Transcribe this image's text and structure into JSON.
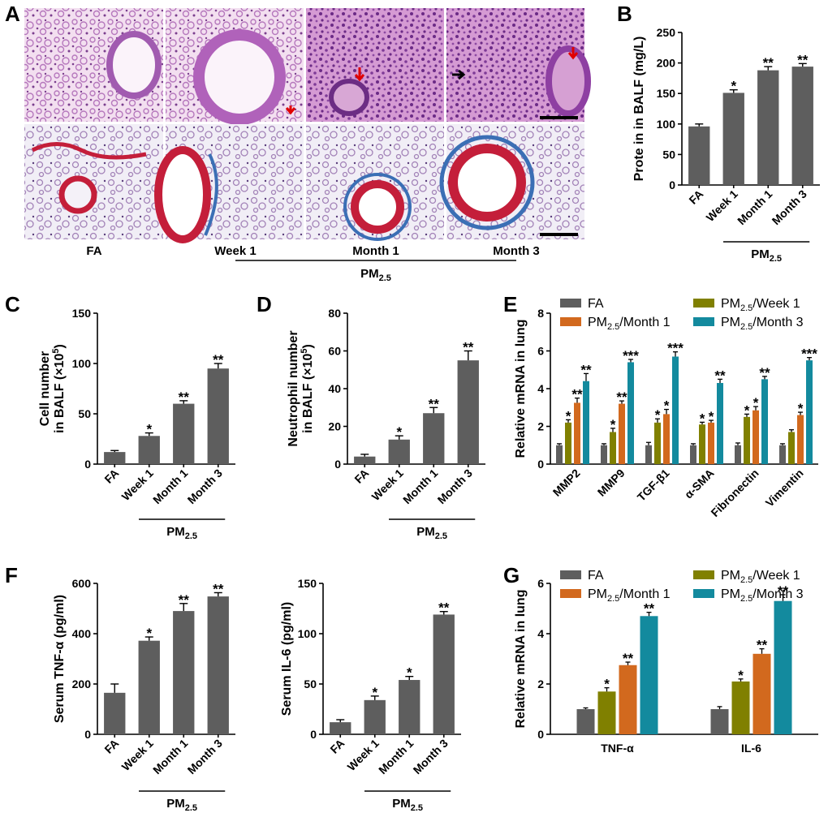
{
  "panel_labels": {
    "a": "A",
    "b": "B",
    "c": "C",
    "d": "D",
    "e": "E",
    "f": "F",
    "g": "G"
  },
  "colors": {
    "FA": "#5e5e5e",
    "week1": "#808000",
    "month1": "#d2691e",
    "month3": "#138a9e",
    "bar": "#5e5e5e"
  },
  "micrographs": {
    "he_row": [
      "FA",
      "Week 1",
      "Month 1",
      "Month 3"
    ],
    "masson_row": [
      "FA",
      "Week 1",
      "Month 1",
      "Month 3"
    ],
    "captions": [
      "FA",
      "Week 1",
      "Month 1",
      "Month 3"
    ],
    "group_label": "PM",
    "group_sub": "2.5"
  },
  "pm_label": "PM",
  "pm_sub": "2.5",
  "chart_data": [
    {
      "id": "B",
      "type": "bar",
      "categories": [
        "FA",
        "Week 1",
        "Month 1",
        "Month 3"
      ],
      "values": [
        96,
        151,
        188,
        194
      ],
      "errors": [
        4,
        5,
        6,
        5
      ],
      "significance": [
        "",
        "*",
        "**",
        "**"
      ],
      "ylabel": "Prote in in BALF (mg/L)",
      "ylim": [
        0,
        250
      ],
      "yticks": [
        0,
        50,
        100,
        150,
        200,
        250
      ]
    },
    {
      "id": "C",
      "type": "bar",
      "categories": [
        "FA",
        "Week 1",
        "Month 1",
        "Month 3"
      ],
      "values": [
        12,
        28,
        60,
        95
      ],
      "errors": [
        1.5,
        3,
        3,
        5
      ],
      "significance": [
        "",
        "*",
        "**",
        "**"
      ],
      "ylabel_line1": "Cell number",
      "ylabel_line2": "in BALF (×10",
      "ylabel_sup": "5",
      "ylabel_end": ")",
      "ylim": [
        0,
        150
      ],
      "yticks": [
        0,
        50,
        100,
        150
      ]
    },
    {
      "id": "D",
      "type": "bar",
      "categories": [
        "FA",
        "Week 1",
        "Month 1",
        "Month 3"
      ],
      "values": [
        4,
        13,
        27,
        55
      ],
      "errors": [
        1.2,
        2,
        3,
        5
      ],
      "significance": [
        "",
        "*",
        "**",
        "**"
      ],
      "ylabel_line1": "Neutrophil number",
      "ylabel_line2": "in BALF (×10",
      "ylabel_sup": "5",
      "ylabel_end": ")",
      "ylim": [
        0,
        80
      ],
      "yticks": [
        0,
        20,
        40,
        60,
        80
      ]
    },
    {
      "id": "E",
      "type": "bar",
      "categories": [
        "MMP2",
        "MMP9",
        "TGF-β1",
        "α-SMA",
        "Fibronectin",
        "Vimentin"
      ],
      "series": [
        {
          "name": "FA",
          "values": [
            1.0,
            1.0,
            1.0,
            1.0,
            1.0,
            1.0
          ],
          "errors": [
            0.08,
            0.08,
            0.15,
            0.08,
            0.12,
            0.08
          ],
          "significance": [
            "",
            "",
            "",
            "",
            "",
            ""
          ]
        },
        {
          "name": "PM2.5/Week 1",
          "values": [
            2.2,
            1.7,
            2.2,
            2.1,
            2.5,
            1.7
          ],
          "errors": [
            0.15,
            0.2,
            0.2,
            0.12,
            0.15,
            0.12
          ],
          "significance": [
            "*",
            "*",
            "*",
            "*",
            "*",
            ""
          ]
        },
        {
          "name": "PM2.5/Month 1",
          "values": [
            3.25,
            3.2,
            2.65,
            2.2,
            2.85,
            2.6
          ],
          "errors": [
            0.25,
            0.15,
            0.25,
            0.12,
            0.2,
            0.15
          ],
          "significance": [
            "**",
            "**",
            "*",
            "*",
            "*",
            "*"
          ]
        },
        {
          "name": "PM2.5/Month 3",
          "values": [
            4.4,
            5.4,
            5.7,
            4.3,
            4.5,
            5.5
          ],
          "errors": [
            0.4,
            0.15,
            0.25,
            0.2,
            0.15,
            0.15
          ],
          "significance": [
            "**",
            "***",
            "***",
            "**",
            "**",
            "***"
          ]
        }
      ],
      "ylabel": "Relative mRNA in lung",
      "ylim": [
        0,
        8
      ],
      "yticks": [
        0,
        2,
        4,
        6,
        8
      ]
    },
    {
      "id": "F1",
      "type": "bar",
      "categories": [
        "FA",
        "Week 1",
        "Month 1",
        "Month 3"
      ],
      "values": [
        165,
        372,
        490,
        548
      ],
      "errors": [
        35,
        15,
        30,
        15
      ],
      "significance": [
        "",
        "*",
        "**",
        "**"
      ],
      "ylabel": "Serum TNF-α (pg/ml)",
      "ylim": [
        0,
        600
      ],
      "yticks": [
        0,
        200,
        400,
        600
      ]
    },
    {
      "id": "F2",
      "type": "bar",
      "categories": [
        "FA",
        "Week 1",
        "Month 1",
        "Month 3"
      ],
      "values": [
        12,
        34,
        54,
        119
      ],
      "errors": [
        2.5,
        4,
        3.5,
        3
      ],
      "significance": [
        "",
        "*",
        "*",
        "**"
      ],
      "ylabel": "Serum IL-6 (pg/ml)",
      "ylim": [
        0,
        150
      ],
      "yticks": [
        0,
        50,
        100,
        150
      ]
    },
    {
      "id": "G",
      "type": "bar",
      "categories": [
        "TNF-α",
        "IL-6"
      ],
      "series": [
        {
          "name": "FA",
          "values": [
            1.0,
            1.0
          ],
          "errors": [
            0.05,
            0.1
          ],
          "significance": [
            "",
            ""
          ]
        },
        {
          "name": "PM2.5/Week 1",
          "values": [
            1.7,
            2.1
          ],
          "errors": [
            0.15,
            0.1
          ],
          "significance": [
            "*",
            "*"
          ]
        },
        {
          "name": "PM2.5/Month 1",
          "values": [
            2.75,
            3.2
          ],
          "errors": [
            0.12,
            0.2
          ],
          "significance": [
            "**",
            "**"
          ]
        },
        {
          "name": "PM2.5/Month 3",
          "values": [
            4.7,
            5.3
          ],
          "errors": [
            0.15,
            0.25
          ],
          "significance": [
            "**",
            "**"
          ]
        }
      ],
      "ylabel": "Relative mRNA in lung",
      "ylim": [
        0,
        6
      ],
      "yticks": [
        0,
        2,
        4,
        6
      ]
    }
  ],
  "legend": [
    {
      "main": "FA",
      "sub": "",
      "rest": ""
    },
    {
      "main": "PM",
      "sub": "2.5",
      "rest": "/Week 1"
    },
    {
      "main": "PM",
      "sub": "2.5",
      "rest": "/Month 1"
    },
    {
      "main": "PM",
      "sub": "2.5",
      "rest": "/Month 3"
    }
  ]
}
